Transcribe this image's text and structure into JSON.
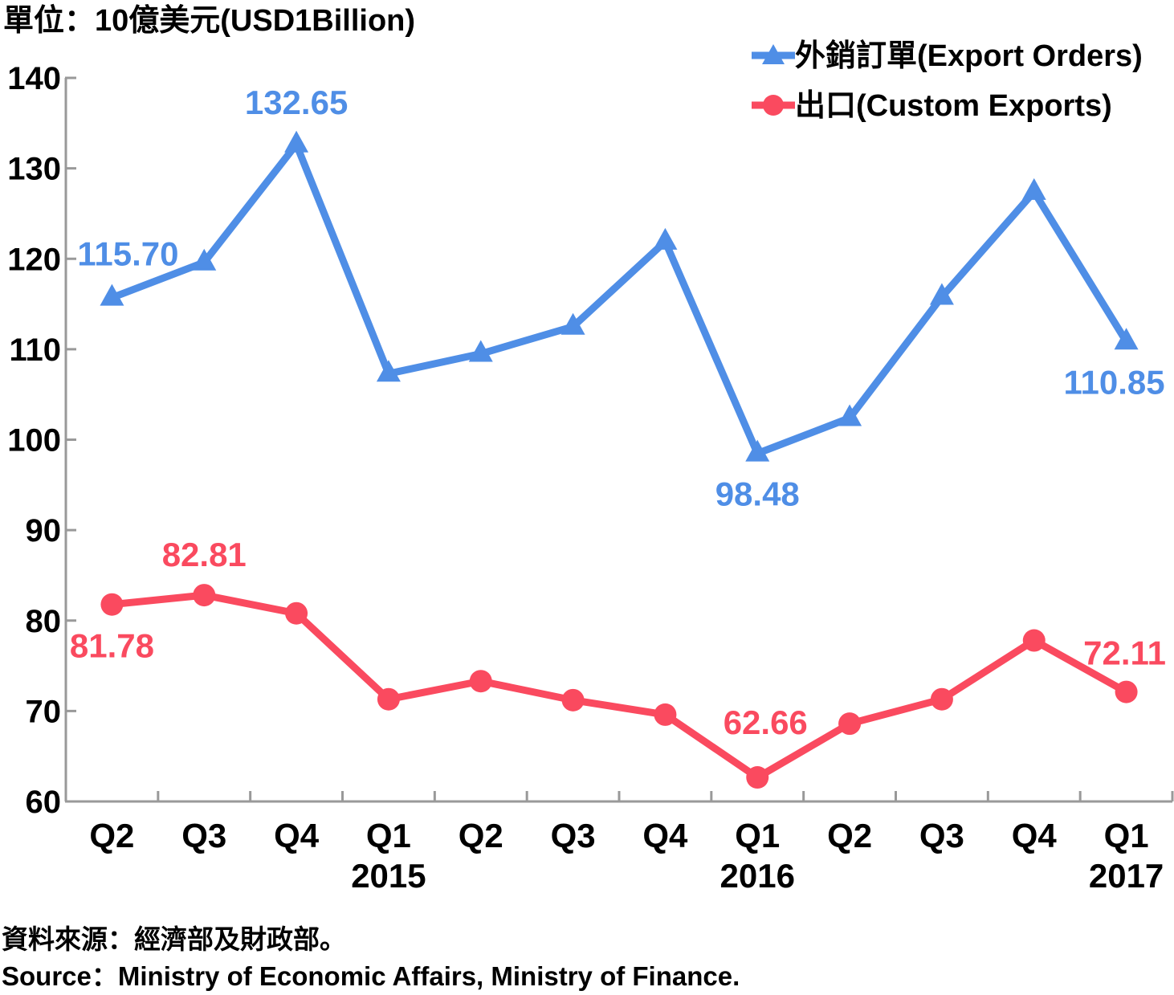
{
  "chart_data": {
    "type": "line",
    "unit_label": "單位：10億美元(USD1Billion)",
    "categories": [
      "Q2",
      "Q3",
      "Q4",
      "Q1",
      "Q2",
      "Q3",
      "Q4",
      "Q1",
      "Q2",
      "Q3",
      "Q4",
      "Q1"
    ],
    "year_labels": [
      {
        "index": 3,
        "label": "2015"
      },
      {
        "index": 7,
        "label": "2016"
      },
      {
        "index": 11,
        "label": "2017"
      }
    ],
    "ylim": [
      60,
      140
    ],
    "yticks": [
      60,
      70,
      80,
      90,
      100,
      110,
      120,
      130,
      140
    ],
    "grid": false,
    "legend_position": "top-right",
    "series": [
      {
        "name": "外銷訂單(Export Orders)",
        "color": "#4f8ee6",
        "marker": "triangle",
        "values": [
          115.7,
          119.6,
          132.65,
          107.3,
          109.5,
          112.5,
          121.9,
          98.48,
          102.4,
          115.8,
          127.4,
          110.85
        ]
      },
      {
        "name": "出口(Custom Exports)",
        "color": "#fa4a5f",
        "marker": "circle",
        "values": [
          81.78,
          82.81,
          80.8,
          71.3,
          73.3,
          71.2,
          69.6,
          62.66,
          68.6,
          71.3,
          77.8,
          72.11
        ]
      }
    ],
    "annotations": [
      {
        "series": 0,
        "index": 0,
        "text": "115.70"
      },
      {
        "series": 0,
        "index": 2,
        "text": "132.65"
      },
      {
        "series": 0,
        "index": 7,
        "text": "98.48"
      },
      {
        "series": 0,
        "index": 11,
        "text": "110.85"
      },
      {
        "series": 1,
        "index": 0,
        "text": "81.78"
      },
      {
        "series": 1,
        "index": 1,
        "text": "82.81"
      },
      {
        "series": 1,
        "index": 7,
        "text": "62.66"
      },
      {
        "series": 1,
        "index": 11,
        "text": "72.11"
      }
    ]
  },
  "source": {
    "line1": "資料來源：經濟部及財政部。",
    "line2": "Source：Ministry of Economic Affairs, Ministry of Finance."
  }
}
